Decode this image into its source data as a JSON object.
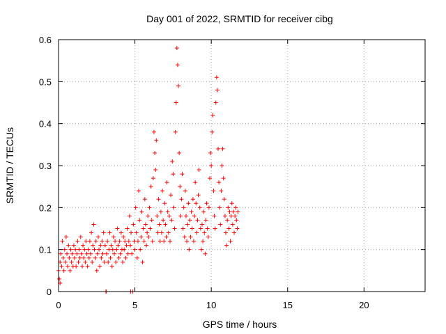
{
  "chart_data": {
    "type": "scatter",
    "title": "Day 001 of 2022, SRMTID for receiver cibg",
    "xlabel": "GPS time / hours",
    "ylabel": "SRMTID / TECUs",
    "xlim": [
      0,
      24
    ],
    "ylim": [
      0,
      0.6
    ],
    "xticks": [
      0,
      5,
      10,
      15,
      20
    ],
    "yticks": [
      0,
      0.1,
      0.2,
      0.3,
      0.4,
      0.5,
      0.6
    ],
    "xtick_labels": [
      "0",
      "5",
      "10",
      "15",
      "20"
    ],
    "ytick_labels": [
      "0",
      "0.1",
      "0.2",
      "0.3",
      "0.4",
      "0.5",
      "0.6"
    ],
    "grid": true,
    "marker": "+",
    "color": "#ff0000",
    "series": [
      {
        "name": "SRMTID",
        "points": [
          [
            0.0,
            0.05
          ],
          [
            0.05,
            0.03
          ],
          [
            0.1,
            0.07
          ],
          [
            0.1,
            0.02
          ],
          [
            0.15,
            0.09
          ],
          [
            0.2,
            0.06
          ],
          [
            0.25,
            0.12
          ],
          [
            0.3,
            0.08
          ],
          [
            0.35,
            0.05
          ],
          [
            0.4,
            0.1
          ],
          [
            0.45,
            0.07
          ],
          [
            0.5,
            0.13
          ],
          [
            0.55,
            0.09
          ],
          [
            0.6,
            0.06
          ],
          [
            0.65,
            0.11
          ],
          [
            0.7,
            0.08
          ],
          [
            0.75,
            0.05
          ],
          [
            0.8,
            0.1
          ],
          [
            0.85,
            0.07
          ],
          [
            0.9,
            0.09
          ],
          [
            0.95,
            0.06
          ],
          [
            1.0,
            0.11
          ],
          [
            1.05,
            0.08
          ],
          [
            1.1,
            0.1
          ],
          [
            1.15,
            0.06
          ],
          [
            1.2,
            0.09
          ],
          [
            1.25,
            0.12
          ],
          [
            1.3,
            0.07
          ],
          [
            1.35,
            0.1
          ],
          [
            1.4,
            0.08
          ],
          [
            1.45,
            0.13
          ],
          [
            1.5,
            0.09
          ],
          [
            1.55,
            0.06
          ],
          [
            1.6,
            0.11
          ],
          [
            1.65,
            0.08
          ],
          [
            1.7,
            0.1
          ],
          [
            1.75,
            0.07
          ],
          [
            1.8,
            0.12
          ],
          [
            1.85,
            0.09
          ],
          [
            1.9,
            0.06
          ],
          [
            1.95,
            0.1
          ],
          [
            2.0,
            0.08
          ],
          [
            2.05,
            0.12
          ],
          [
            2.1,
            0.09
          ],
          [
            2.15,
            0.14
          ],
          [
            2.2,
            0.07
          ],
          [
            2.25,
            0.11
          ],
          [
            2.3,
            0.16
          ],
          [
            2.35,
            0.1
          ],
          [
            2.4,
            0.08
          ],
          [
            2.45,
            0.12
          ],
          [
            2.5,
            0.05
          ],
          [
            2.55,
            0.09
          ],
          [
            2.6,
            0.13
          ],
          [
            2.65,
            0.1
          ],
          [
            2.7,
            0.06
          ],
          [
            2.75,
            0.11
          ],
          [
            2.8,
            0.08
          ],
          [
            2.85,
            0.12
          ],
          [
            2.9,
            0.09
          ],
          [
            2.95,
            0.14
          ],
          [
            3.0,
            0.07
          ],
          [
            3.05,
            0.11
          ],
          [
            3.1,
            0.0
          ],
          [
            3.12,
            0.0
          ],
          [
            3.15,
            0.09
          ],
          [
            3.2,
            0.12
          ],
          [
            3.25,
            0.07
          ],
          [
            3.3,
            0.1
          ],
          [
            3.35,
            0.14
          ],
          [
            3.4,
            0.08
          ],
          [
            3.45,
            0.11
          ],
          [
            3.5,
            0.06
          ],
          [
            3.55,
            0.1
          ],
          [
            3.6,
            0.13
          ],
          [
            3.65,
            0.09
          ],
          [
            3.7,
            0.12
          ],
          [
            3.75,
            0.07
          ],
          [
            3.8,
            0.1
          ],
          [
            3.85,
            0.15
          ],
          [
            3.9,
            0.11
          ],
          [
            3.95,
            0.08
          ],
          [
            4.0,
            0.12
          ],
          [
            4.05,
            0.09
          ],
          [
            4.1,
            0.14
          ],
          [
            4.15,
            0.1
          ],
          [
            4.2,
            0.07
          ],
          [
            4.25,
            0.13
          ],
          [
            4.3,
            0.1
          ],
          [
            4.35,
            0.12
          ],
          [
            4.4,
            0.08
          ],
          [
            4.45,
            0.11
          ],
          [
            4.5,
            0.15
          ],
          [
            4.55,
            0.09
          ],
          [
            4.6,
            0.12
          ],
          [
            4.65,
            0.18
          ],
          [
            4.7,
            0.11
          ],
          [
            4.72,
            0.0
          ],
          [
            4.75,
            0.14
          ],
          [
            4.8,
            0.09
          ],
          [
            4.85,
            0.0
          ],
          [
            4.9,
            0.16
          ],
          [
            4.95,
            0.12
          ],
          [
            5.0,
            0.1
          ],
          [
            5.05,
            0.2
          ],
          [
            5.1,
            0.14
          ],
          [
            5.15,
            0.08
          ],
          [
            5.2,
            0.12
          ],
          [
            5.25,
            0.24
          ],
          [
            5.3,
            0.17
          ],
          [
            5.35,
            0.1
          ],
          [
            5.4,
            0.13
          ],
          [
            5.45,
            0.19
          ],
          [
            5.5,
            0.07
          ],
          [
            5.55,
            0.15
          ],
          [
            5.6,
            0.12
          ],
          [
            5.65,
            0.22
          ],
          [
            5.7,
            0.16
          ],
          [
            5.75,
            0.11
          ],
          [
            5.8,
            0.14
          ],
          [
            5.85,
            0.18
          ],
          [
            5.9,
            0.13
          ],
          [
            5.95,
            0.2
          ],
          [
            6.0,
            0.15
          ],
          [
            6.05,
            0.25
          ],
          [
            6.1,
            0.17
          ],
          [
            6.15,
            0.12
          ],
          [
            6.2,
            0.27
          ],
          [
            6.25,
            0.38
          ],
          [
            6.3,
            0.33
          ],
          [
            6.35,
            0.29
          ],
          [
            6.4,
            0.36
          ],
          [
            6.45,
            0.18
          ],
          [
            6.5,
            0.14
          ],
          [
            6.55,
            0.22
          ],
          [
            6.6,
            0.16
          ],
          [
            6.65,
            0.12
          ],
          [
            6.7,
            0.19
          ],
          [
            6.75,
            0.14
          ],
          [
            6.8,
            0.24
          ],
          [
            6.85,
            0.17
          ],
          [
            6.9,
            0.12
          ],
          [
            6.95,
            0.21
          ],
          [
            7.0,
            0.16
          ],
          [
            7.05,
            0.13
          ],
          [
            7.1,
            0.26
          ],
          [
            7.15,
            0.19
          ],
          [
            7.2,
            0.14
          ],
          [
            7.25,
            0.18
          ],
          [
            7.3,
            0.12
          ],
          [
            7.35,
            0.23
          ],
          [
            7.4,
            0.17
          ],
          [
            7.45,
            0.31
          ],
          [
            7.5,
            0.28
          ],
          [
            7.55,
            0.2
          ],
          [
            7.6,
            0.15
          ],
          [
            7.65,
            0.38
          ],
          [
            7.7,
            0.45
          ],
          [
            7.75,
            0.58
          ],
          [
            7.8,
            0.54
          ],
          [
            7.85,
            0.49
          ],
          [
            7.9,
            0.33
          ],
          [
            7.95,
            0.25
          ],
          [
            8.0,
            0.18
          ],
          [
            8.05,
            0.22
          ],
          [
            8.1,
            0.28
          ],
          [
            8.15,
            0.15
          ],
          [
            8.2,
            0.2
          ],
          [
            8.25,
            0.13
          ],
          [
            8.3,
            0.24
          ],
          [
            8.35,
            0.18
          ],
          [
            8.4,
            0.12
          ],
          [
            8.45,
            0.16
          ],
          [
            8.5,
            0.21
          ],
          [
            8.55,
            0.1
          ],
          [
            8.6,
            0.17
          ],
          [
            8.65,
            0.13
          ],
          [
            8.7,
            0.19
          ],
          [
            8.75,
            0.15
          ],
          [
            8.8,
            0.22
          ],
          [
            8.85,
            0.12
          ],
          [
            8.9,
            0.18
          ],
          [
            8.95,
            0.26
          ],
          [
            9.0,
            0.21
          ],
          [
            9.05,
            0.14
          ],
          [
            9.1,
            0.17
          ],
          [
            9.15,
            0.23
          ],
          [
            9.2,
            0.29
          ],
          [
            9.25,
            0.2
          ],
          [
            9.3,
            0.15
          ],
          [
            9.35,
            0.1
          ],
          [
            9.4,
            0.16
          ],
          [
            9.45,
            0.12
          ],
          [
            9.5,
            0.19
          ],
          [
            9.55,
            0.14
          ],
          [
            9.6,
            0.09
          ],
          [
            9.65,
            0.17
          ],
          [
            9.7,
            0.21
          ],
          [
            9.75,
            0.15
          ],
          [
            9.8,
            0.13
          ],
          [
            9.85,
            0.2
          ],
          [
            9.9,
            0.27
          ],
          [
            9.95,
            0.33
          ],
          [
            10.0,
            0.3
          ],
          [
            10.05,
            0.38
          ],
          [
            10.1,
            0.42
          ],
          [
            10.15,
            0.24
          ],
          [
            10.2,
            0.18
          ],
          [
            10.25,
            0.15
          ],
          [
            10.3,
            0.45
          ],
          [
            10.35,
            0.51
          ],
          [
            10.4,
            0.48
          ],
          [
            10.45,
            0.34
          ],
          [
            10.5,
            0.26
          ],
          [
            10.55,
            0.2
          ],
          [
            10.6,
            0.16
          ],
          [
            10.65,
            0.24
          ],
          [
            10.7,
            0.3
          ],
          [
            10.75,
            0.34
          ],
          [
            10.8,
            0.27
          ],
          [
            10.85,
            0.22
          ],
          [
            10.9,
            0.18
          ],
          [
            10.95,
            0.14
          ],
          [
            11.0,
            0.11
          ],
          [
            11.05,
            0.17
          ],
          [
            11.1,
            0.2
          ],
          [
            11.15,
            0.15
          ],
          [
            11.2,
            0.19
          ],
          [
            11.25,
            0.12
          ],
          [
            11.3,
            0.18
          ],
          [
            11.35,
            0.21
          ],
          [
            11.4,
            0.16
          ],
          [
            11.45,
            0.19
          ],
          [
            11.5,
            0.14
          ],
          [
            11.55,
            0.18
          ],
          [
            11.6,
            0.2
          ],
          [
            11.65,
            0.17
          ],
          [
            11.7,
            0.15
          ],
          [
            11.75,
            0.19
          ]
        ]
      }
    ]
  }
}
